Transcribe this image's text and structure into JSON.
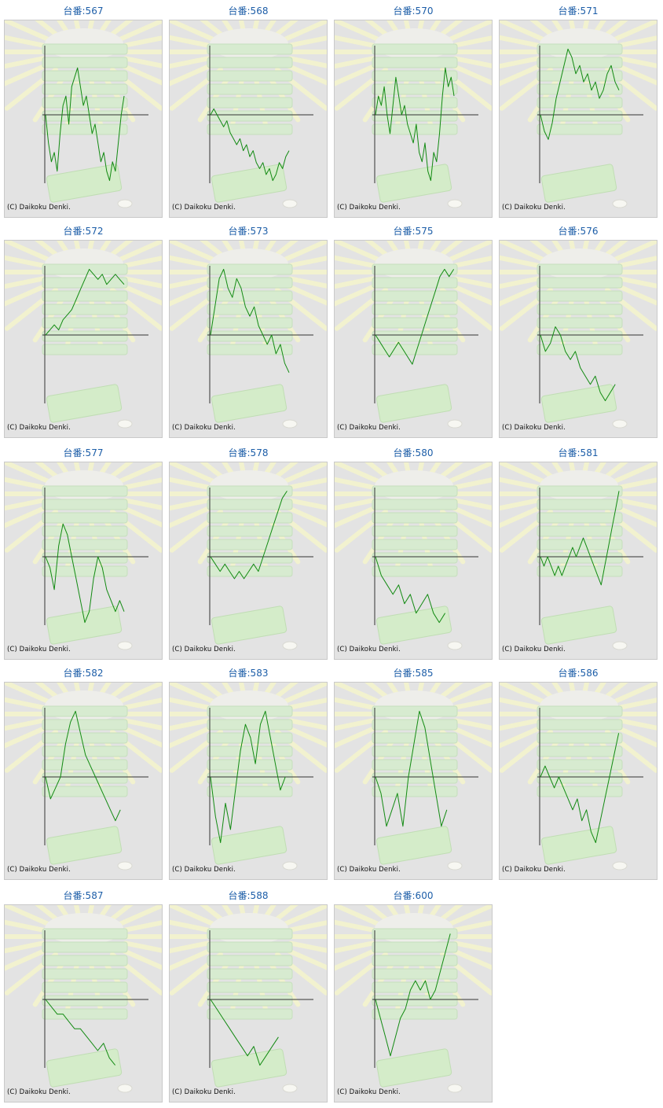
{
  "copyright": "(C) Daikoku Denki.",
  "colors": {
    "line": "#128a12",
    "axis": "#333333",
    "title": "#1d5ea8",
    "panel_bg": "#e3e3e3"
  },
  "chart_data": [
    {
      "type": "line",
      "title": "台番:567",
      "y": [
        0,
        -3,
        -5,
        -4,
        -6,
        -2,
        1,
        2,
        -1,
        3,
        4,
        5,
        3,
        1,
        2,
        0,
        -2,
        -1,
        -3,
        -5,
        -4,
        -6,
        -7,
        -5,
        -6,
        -3,
        0,
        2
      ]
    },
    {
      "type": "line",
      "title": "台番:568",
      "y": [
        0,
        1,
        0,
        -1,
        -2,
        -1,
        -3,
        -4,
        -5,
        -4,
        -6,
        -5,
        -7,
        -6,
        -8,
        -9,
        -8,
        -10,
        -9,
        -11,
        -10,
        -8,
        -9,
        -7,
        -6
      ]
    },
    {
      "type": "line",
      "title": "台番:570",
      "y": [
        0,
        2,
        1,
        3,
        0,
        -2,
        1,
        4,
        2,
        0,
        1,
        -1,
        -2,
        -3,
        -1,
        -4,
        -5,
        -3,
        -6,
        -7,
        -4,
        -5,
        -2,
        2,
        5,
        3,
        4,
        2
      ]
    },
    {
      "type": "line",
      "title": "台番:571",
      "y": [
        0,
        -2,
        -3,
        -1,
        2,
        4,
        6,
        8,
        7,
        5,
        6,
        4,
        5,
        3,
        4,
        2,
        3,
        5,
        6,
        4,
        3
      ]
    },
    {
      "type": "line",
      "title": "台番:572",
      "y": [
        0,
        1,
        2,
        1,
        3,
        4,
        5,
        7,
        9,
        11,
        13,
        12,
        11,
        12,
        10,
        11,
        12,
        11,
        10
      ]
    },
    {
      "type": "line",
      "title": "台番:573",
      "y": [
        0,
        3,
        6,
        7,
        5,
        4,
        6,
        5,
        3,
        2,
        3,
        1,
        0,
        -1,
        0,
        -2,
        -1,
        -3,
        -4
      ]
    },
    {
      "type": "line",
      "title": "台番:575",
      "y": [
        0,
        -1,
        -2,
        -3,
        -2,
        -1,
        -2,
        -3,
        -4,
        -2,
        0,
        2,
        4,
        6,
        8,
        9,
        8,
        9
      ]
    },
    {
      "type": "line",
      "title": "台番:576",
      "y": [
        0,
        -2,
        -1,
        1,
        0,
        -2,
        -3,
        -2,
        -4,
        -5,
        -6,
        -5,
        -7,
        -8,
        -7,
        -6
      ]
    },
    {
      "type": "line",
      "title": "台番:577",
      "y": [
        0,
        -1,
        -3,
        1,
        3,
        2,
        0,
        -2,
        -4,
        -6,
        -5,
        -2,
        0,
        -1,
        -3,
        -4,
        -5,
        -4,
        -5
      ]
    },
    {
      "type": "line",
      "title": "台番:578",
      "y": [
        0,
        -1,
        -2,
        -1,
        -2,
        -3,
        -2,
        -3,
        -2,
        -1,
        -2,
        0,
        2,
        4,
        6,
        8,
        9
      ]
    },
    {
      "type": "line",
      "title": "台番:580",
      "y": [
        0,
        -2,
        -3,
        -4,
        -3,
        -5,
        -4,
        -6,
        -5,
        -4,
        -6,
        -7,
        -6
      ]
    },
    {
      "type": "line",
      "title": "台番:581",
      "y": [
        0,
        -1,
        0,
        -1,
        -2,
        -1,
        -2,
        -1,
        0,
        1,
        0,
        1,
        2,
        1,
        0,
        -1,
        -2,
        -3,
        -1,
        1,
        3,
        5,
        7
      ]
    },
    {
      "type": "line",
      "title": "台番:582",
      "y": [
        0,
        -2,
        -1,
        0,
        3,
        5,
        6,
        4,
        2,
        1,
        0,
        -1,
        -2,
        -3,
        -4,
        -3
      ]
    },
    {
      "type": "line",
      "title": "台番:583",
      "y": [
        0,
        -3,
        -5,
        -2,
        -4,
        -1,
        2,
        4,
        3,
        1,
        4,
        5,
        3,
        1,
        -1,
        0
      ]
    },
    {
      "type": "line",
      "title": "台番:585",
      "y": [
        0,
        -1,
        -3,
        -2,
        -1,
        -3,
        0,
        2,
        4,
        3,
        1,
        -1,
        -3,
        -2
      ]
    },
    {
      "type": "line",
      "title": "台番:586",
      "y": [
        0,
        1,
        0,
        -1,
        0,
        -1,
        -2,
        -3,
        -2,
        -4,
        -3,
        -5,
        -6,
        -4,
        -2,
        0,
        2,
        4
      ]
    },
    {
      "type": "line",
      "title": "台番:587",
      "y": [
        0,
        -1,
        -2,
        -2,
        -3,
        -4,
        -4,
        -5,
        -6,
        -7,
        -6,
        -8,
        -9
      ]
    },
    {
      "type": "line",
      "title": "台番:588",
      "y": [
        0,
        -1,
        -2,
        -3,
        -4,
        -5,
        -6,
        -5,
        -7,
        -6,
        -5,
        -4
      ]
    },
    {
      "type": "line",
      "title": "台番:600",
      "y": [
        0,
        -2,
        -4,
        -6,
        -4,
        -2,
        -1,
        1,
        2,
        1,
        2,
        0,
        1,
        3,
        5,
        7
      ]
    }
  ]
}
